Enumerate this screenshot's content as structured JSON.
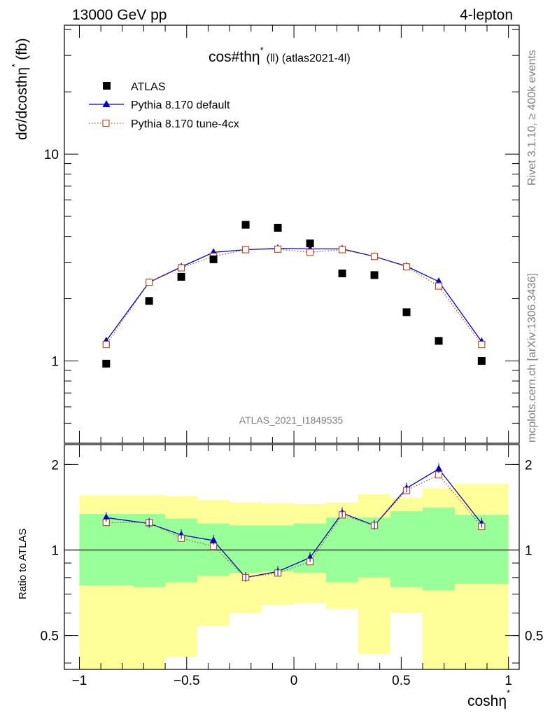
{
  "header": {
    "left": "13000 GeV pp",
    "right": "4-lepton"
  },
  "plot_title_main": "cos#thη",
  "plot_title_sup": "*",
  "plot_title_rest": "(ll) (atlas2021-4l)",
  "watermark": "ATLAS_2021_I1849535",
  "side_text_top": "Rivet 3.1.10, ≥ 400k events",
  "side_text_bottom": "mcplots.cern.ch [arXiv:1306.3436]",
  "ylabel_main": "dσ/dcosthη",
  "ylabel_main_sup": "*",
  "ylabel_main_unit": "(fb)",
  "ylabel_ratio": "Ratio to ATLAS",
  "xlabel": "coshη",
  "xlabel_sup": "*",
  "legend": [
    {
      "label": "ATLAS",
      "marker": "square-filled",
      "color": "#000000"
    },
    {
      "label": "Pythia 8.170 default",
      "marker": "triangle",
      "color": "#0000cc"
    },
    {
      "label": "Pythia 8.170 tune-4cx",
      "marker": "square-open",
      "color": "#b5542a"
    }
  ],
  "chart_data": {
    "type": "line",
    "x_edges": [
      -1,
      -0.75,
      -0.6,
      -0.45,
      -0.3,
      -0.15,
      0,
      0.15,
      0.3,
      0.45,
      0.6,
      0.75,
      1
    ],
    "x": [
      -0.875,
      -0.675,
      -0.525,
      -0.375,
      -0.225,
      -0.075,
      0.075,
      0.225,
      0.375,
      0.525,
      0.675,
      0.875
    ],
    "xlim": [
      -1.07,
      1.05
    ],
    "xticks": [
      -1,
      -0.5,
      0,
      0.5,
      1
    ],
    "xtick_labels": [
      "−1",
      "−0.5",
      "0",
      "0.5",
      "1"
    ],
    "main": {
      "yscale": "log",
      "ylim": [
        0.4,
        42
      ],
      "yticks": [
        1,
        10
      ],
      "ytick_labels": [
        "1",
        "10"
      ],
      "series": [
        {
          "name": "ATLAS",
          "values": [
            0.97,
            1.95,
            2.55,
            3.1,
            4.55,
            4.4,
            3.7,
            2.65,
            2.6,
            1.72,
            1.25,
            1.0
          ]
        },
        {
          "name": "Pythia 8.170 default",
          "values": [
            1.25,
            2.4,
            2.85,
            3.35,
            3.45,
            3.5,
            3.48,
            3.48,
            3.2,
            2.87,
            2.42,
            1.24
          ]
        },
        {
          "name": "Pythia 8.170 tune-4cx",
          "values": [
            1.2,
            2.4,
            2.82,
            3.2,
            3.45,
            3.47,
            3.35,
            3.45,
            3.2,
            2.85,
            2.3,
            1.2
          ]
        }
      ]
    },
    "ratio": {
      "yscale": "log",
      "ylim": [
        0.38,
        2.35
      ],
      "yticks": [
        0.5,
        1,
        2
      ],
      "ytick_labels": [
        "0.5",
        "1",
        "2"
      ],
      "band_inner": {
        "low": [
          0.75,
          0.74,
          0.77,
          0.81,
          0.83,
          0.84,
          0.83,
          0.77,
          0.8,
          0.74,
          0.72,
          0.76
        ],
        "high": [
          1.34,
          1.34,
          1.29,
          1.24,
          1.22,
          1.22,
          1.24,
          1.3,
          1.3,
          1.37,
          1.41,
          1.33
        ],
        "color": "#99ff99"
      },
      "band_outer": {
        "low": [
          0.36,
          0.36,
          0.42,
          0.54,
          0.6,
          0.64,
          0.65,
          0.62,
          0.43,
          0.6,
          0.35,
          0.34,
          0.42
        ],
        "high": [
          1.56,
          1.56,
          1.55,
          1.5,
          1.47,
          1.46,
          1.45,
          1.47,
          1.57,
          1.53,
          1.65,
          1.71,
          1.56
        ],
        "color": "#ffff99"
      },
      "series": [
        {
          "name": "Pythia 8.170 default",
          "values": [
            1.3,
            1.24,
            1.13,
            1.08,
            0.8,
            0.84,
            0.94,
            1.35,
            1.22,
            1.65,
            1.93,
            1.24
          ]
        },
        {
          "name": "Pythia 8.170 tune-4cx",
          "values": [
            1.25,
            1.25,
            1.1,
            1.03,
            0.8,
            0.83,
            0.91,
            1.33,
            1.22,
            1.62,
            1.84,
            1.21
          ]
        }
      ]
    }
  }
}
